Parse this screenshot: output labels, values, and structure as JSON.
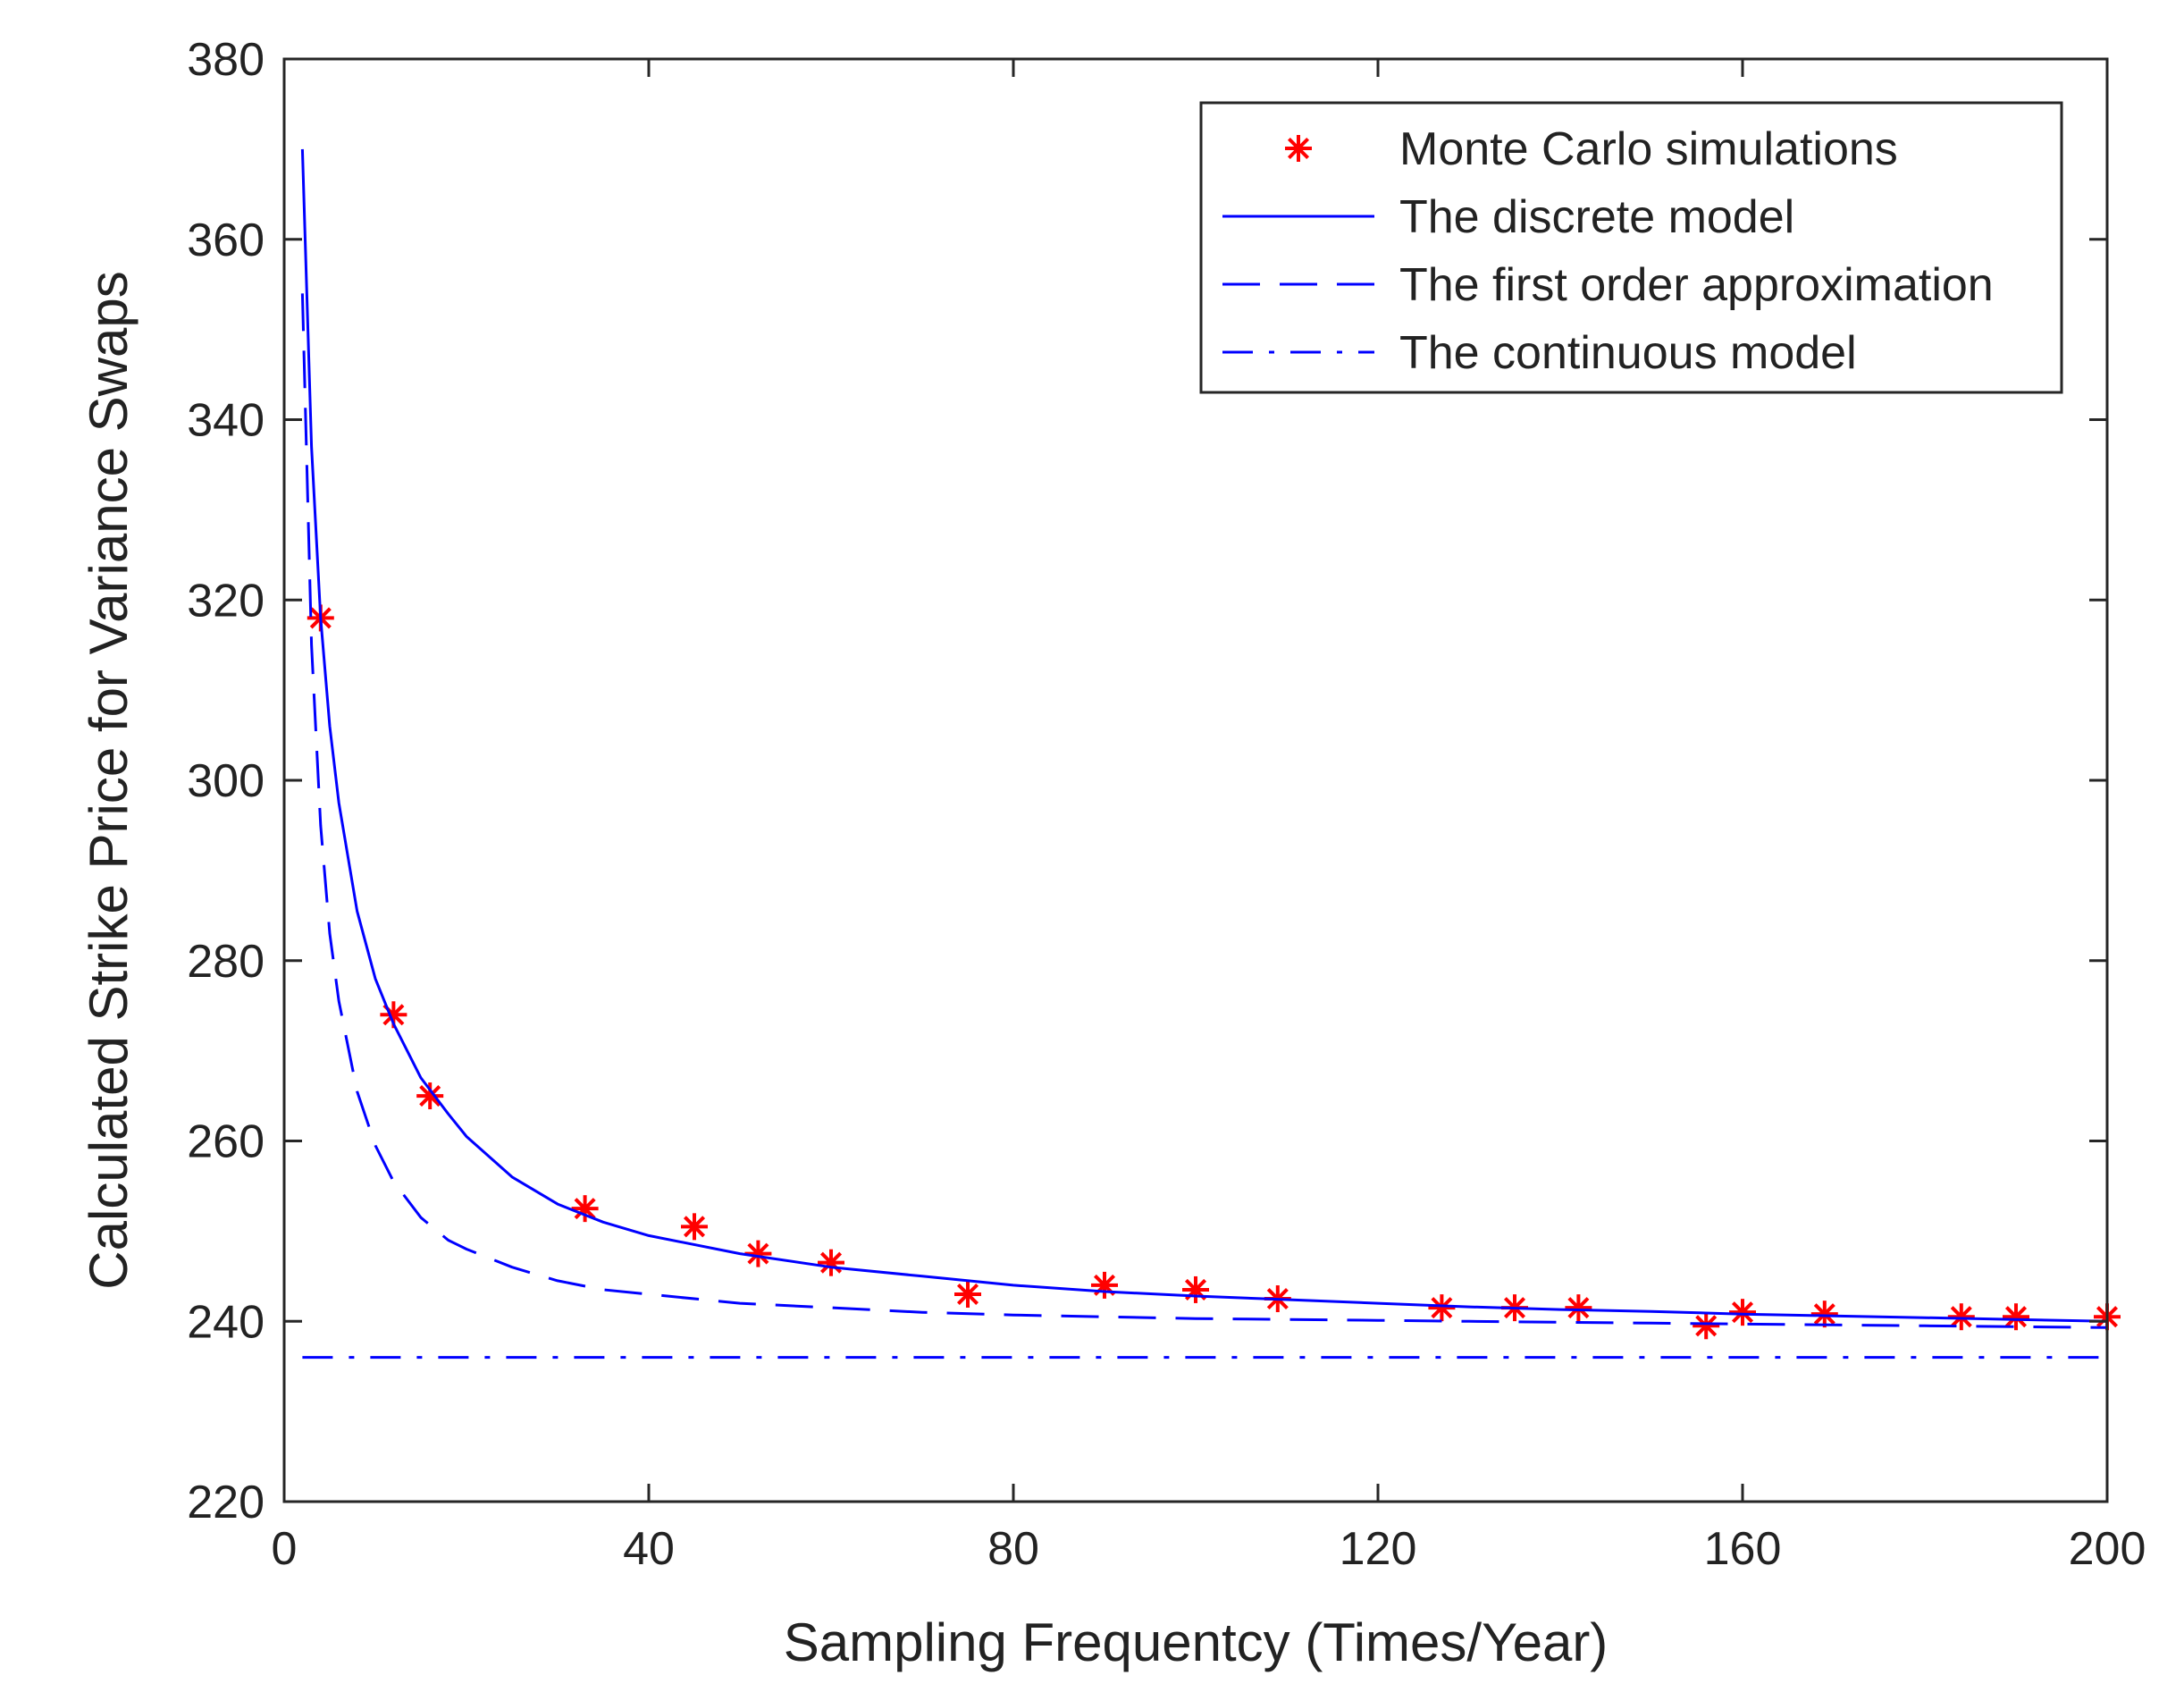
{
  "chart_data": {
    "type": "line",
    "title": "",
    "xlabel": "Sampling Frequentcy (Times/Year)",
    "ylabel": "Calculated Strike Price for Variance Swaps",
    "xlim": [
      0,
      200
    ],
    "ylim": [
      220,
      380
    ],
    "xticks": [
      0,
      40,
      80,
      120,
      160,
      200
    ],
    "yticks": [
      220,
      240,
      260,
      280,
      300,
      320,
      340,
      360,
      380
    ],
    "xtick_labels": [
      "0",
      "40",
      "80",
      "120",
      "160",
      "200"
    ],
    "ytick_labels": [
      "220",
      "240",
      "260",
      "280",
      "300",
      "320",
      "340",
      "360",
      "380"
    ],
    "grid": false,
    "legend_position": "top-right",
    "series": [
      {
        "name": "Monte Carlo simulations",
        "style": "markers-asterisk",
        "color": "#ff0000",
        "x": [
          4,
          12,
          16,
          33,
          45,
          52,
          60,
          75,
          90,
          100,
          109,
          127,
          135,
          142,
          156,
          160,
          169,
          184,
          190,
          200
        ],
        "y": [
          318,
          274,
          265,
          252.5,
          250.5,
          247.5,
          246.5,
          243,
          244,
          243.5,
          242.5,
          241.5,
          241.5,
          241.5,
          239.5,
          241,
          240.8,
          240.5,
          240.5,
          240.5
        ]
      },
      {
        "name": "The discrete model",
        "style": "solid",
        "color": "#0000ff",
        "x": [
          2,
          3,
          4,
          5,
          6,
          8,
          10,
          12,
          15,
          18,
          20,
          25,
          30,
          35,
          40,
          50,
          60,
          70,
          80,
          90,
          100,
          110,
          120,
          130,
          140,
          150,
          160,
          170,
          180,
          190,
          200
        ],
        "y": [
          370,
          337,
          318,
          306,
          297.5,
          285.5,
          278,
          273,
          267,
          263,
          260.5,
          256,
          253,
          251,
          249.5,
          247.5,
          246,
          245,
          244,
          243.3,
          242.8,
          242.4,
          242,
          241.6,
          241.3,
          241.1,
          240.8,
          240.6,
          240.4,
          240.2,
          240
        ]
      },
      {
        "name": "The first order approximation",
        "style": "dashed",
        "color": "#0000ff",
        "x": [
          2,
          3,
          4,
          5,
          6,
          8,
          10,
          12,
          15,
          18,
          20,
          25,
          30,
          35,
          40,
          50,
          60,
          70,
          80,
          90,
          100,
          110,
          120,
          130,
          140,
          150,
          160,
          170,
          180,
          190,
          200
        ],
        "y": [
          354,
          315,
          295,
          283,
          275.5,
          265.5,
          259.5,
          255.5,
          251.5,
          249,
          248,
          246,
          244.5,
          243.5,
          243,
          242,
          241.5,
          241,
          240.7,
          240.5,
          240.3,
          240.2,
          240.1,
          240,
          239.9,
          239.8,
          239.7,
          239.6,
          239.5,
          239.4,
          239.3
        ]
      },
      {
        "name": "The continuous model",
        "style": "dash-dot",
        "color": "#0000ff",
        "x": [
          2,
          200
        ],
        "y": [
          236,
          236
        ]
      }
    ]
  }
}
